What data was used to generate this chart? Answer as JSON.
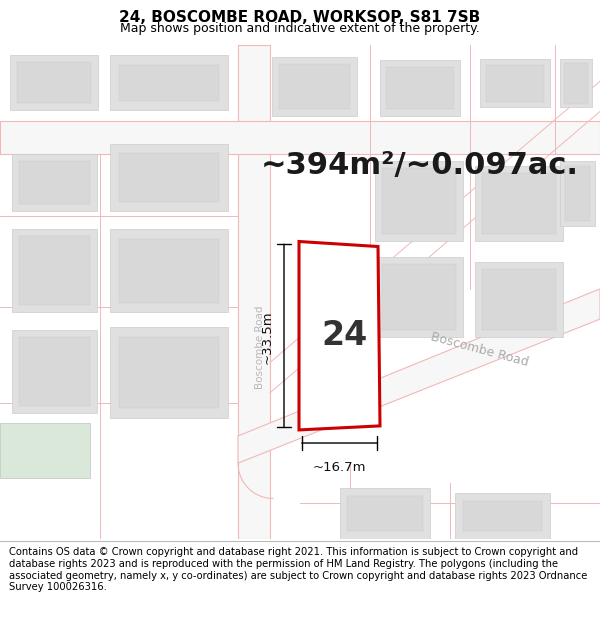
{
  "title": "24, BOSCOMBE ROAD, WORKSOP, S81 7SB",
  "subtitle": "Map shows position and indicative extent of the property.",
  "area_label": "~394m²/~0.097ac.",
  "plot_number": "24",
  "dim_width": "~16.7m",
  "dim_height": "~33.5m",
  "road_label": "Boscombe Road",
  "road_label_vertical": "Boscombe Road",
  "footer": "Contains OS data © Crown copyright and database right 2021. This information is subject to Crown copyright and database rights 2023 and is reproduced with the permission of HM Land Registry. The polygons (including the associated geometry, namely x, y co-ordinates) are subject to Crown copyright and database rights 2023 Ordnance Survey 100026316.",
  "map_bg": "#f0efef",
  "street_line_color": "#f0b8b8",
  "road_fill": "#f8f7f7",
  "building_outer": "#e0e0e0",
  "building_inner": "#d0d0d0",
  "plot_fill": "#ffffff",
  "plot_edge": "#cc0000",
  "plot_edge_width": 2.2,
  "title_fontsize": 11,
  "subtitle_fontsize": 9,
  "area_fontsize": 22,
  "plot_num_fontsize": 24,
  "footer_fontsize": 7.2,
  "dim_fontsize": 9.5,
  "road_name_fontsize": 9,
  "vert_road_fontsize": 7.5
}
